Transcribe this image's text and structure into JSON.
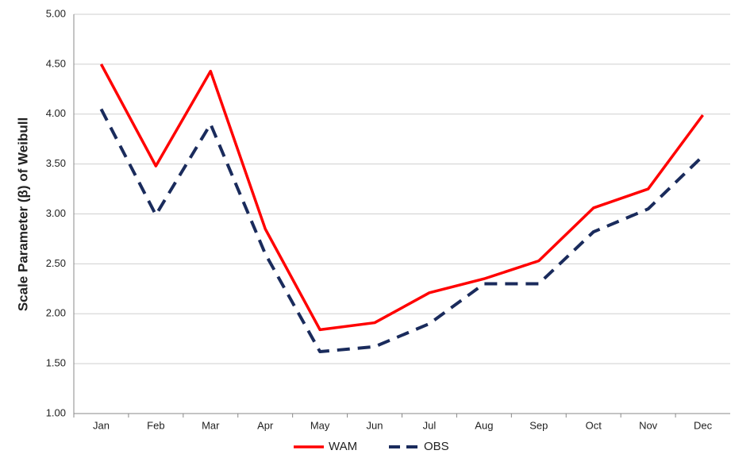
{
  "chart_data": {
    "type": "line",
    "y_label": "Scale Parameter (β) of Weibull",
    "categories": [
      "Jan",
      "Feb",
      "Mar",
      "Apr",
      "May",
      "Jun",
      "Jul",
      "Aug",
      "Sep",
      "Oct",
      "Nov",
      "Dec"
    ],
    "series": [
      {
        "name": "WAM",
        "color": "#ff0000",
        "dash": "solid",
        "values": [
          4.5,
          3.48,
          4.43,
          2.85,
          1.84,
          1.91,
          2.21,
          2.35,
          2.53,
          3.06,
          3.25,
          3.99
        ]
      },
      {
        "name": "OBS",
        "color": "#1a2b5c",
        "dash": "dashed",
        "values": [
          4.05,
          2.99,
          3.9,
          2.6,
          1.62,
          1.67,
          1.9,
          2.3,
          2.3,
          2.82,
          3.05,
          3.58
        ]
      }
    ],
    "ylim": [
      1,
      5
    ],
    "yticks": [
      {
        "value": 1,
        "label": "1.00"
      },
      {
        "value": 1.5,
        "label": "1.50"
      },
      {
        "value": 2,
        "label": "2.00"
      },
      {
        "value": 2.5,
        "label": "2.50"
      },
      {
        "value": 3,
        "label": "3.00"
      },
      {
        "value": 3.5,
        "label": "3.50"
      },
      {
        "value": 4,
        "label": "4.00"
      },
      {
        "value": 4.5,
        "label": "4.50"
      },
      {
        "value": 5,
        "label": "5.00"
      }
    ],
    "grid": true,
    "legend": "bottom"
  }
}
